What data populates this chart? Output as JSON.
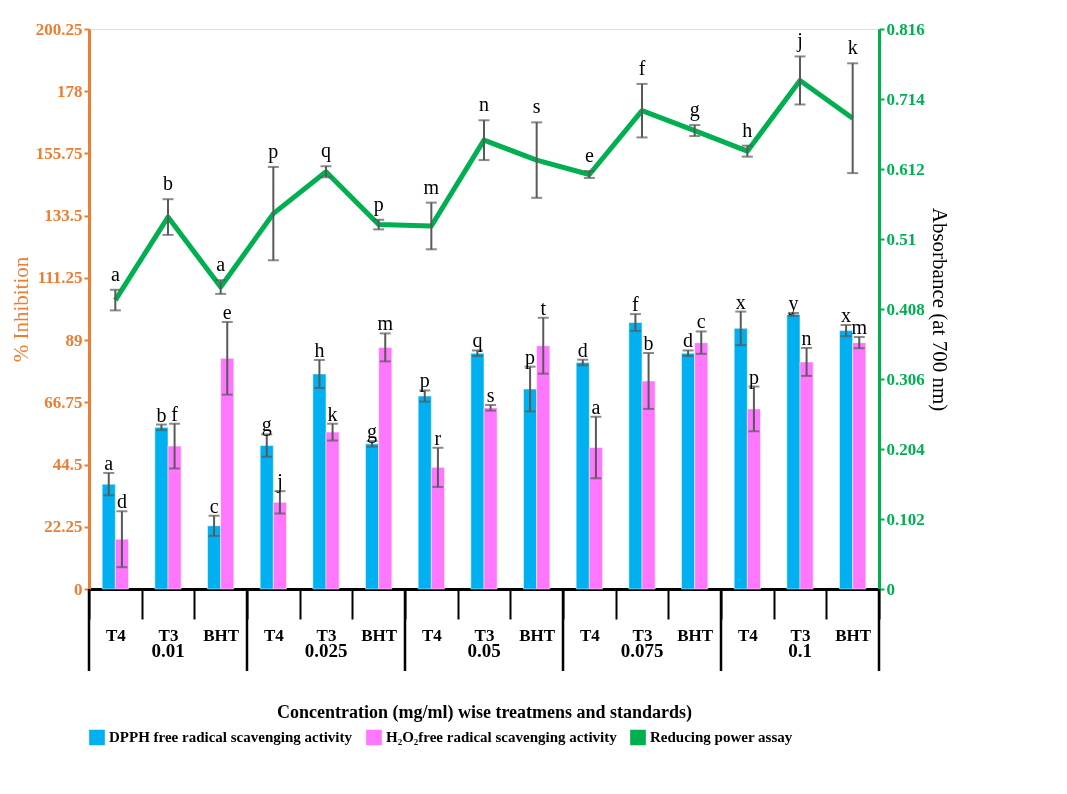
{
  "chart_data": {
    "type": "bar",
    "xlabel": "Concentration (mg/ml) wise treatmens  and standards)",
    "ylabel": "% Inhibition",
    "y2label": "Absorbance (at 700 nm)",
    "categories": [
      "T4",
      "T3",
      "BHT",
      "T4",
      "T3",
      "BHT",
      "T4",
      "T3",
      "BHT",
      "T4",
      "T3",
      "BHT",
      "T4",
      "T3",
      "BHT"
    ],
    "annotations": [
      "0.01",
      "0.025",
      "0.05",
      "0.075",
      "0.1"
    ],
    "series": [
      {
        "name": "DPPH free radical scavenging activity",
        "color": "#00b0f0",
        "values": [
          37.5,
          57.8,
          22.6,
          51.3,
          76.9,
          51.9,
          69,
          84.3,
          71.5,
          81,
          95.3,
          84.3,
          93.2,
          98.2,
          92.4
        ],
        "errors": [
          4,
          1,
          3.6,
          4,
          5,
          1,
          2,
          1,
          8,
          1,
          3,
          1,
          6,
          0.5,
          2
        ],
        "value_labels": [
          "a",
          "b",
          "c",
          "g",
          "h",
          "g",
          "p",
          "q",
          "p",
          "d",
          "f",
          "d",
          "x",
          "y",
          "x"
        ]
      },
      {
        "name": "H₂O₂free radical scavenging activity",
        "color": "#ff77ff",
        "values": [
          17.8,
          51.1,
          82.5,
          31,
          56.1,
          86.4,
          43.5,
          64.8,
          87,
          50.6,
          74.4,
          88.1,
          64.4,
          81.2,
          88.1
        ],
        "errors": [
          10,
          8,
          13,
          4,
          3,
          5,
          7,
          1,
          10,
          11,
          10,
          4,
          8,
          5,
          2
        ],
        "value_labels": [
          "d",
          "f",
          "e",
          "j",
          "k",
          "m",
          "r",
          "s",
          "t",
          "a",
          "b",
          "c",
          "p",
          "n",
          "m"
        ]
      },
      {
        "name": "Reducing power assay",
        "type": "line",
        "axis": "y2",
        "color": "#00b050",
        "values": [
          0.421,
          0.542,
          0.44,
          0.547,
          0.608,
          0.531,
          0.529,
          0.654,
          0.625,
          0.604,
          0.697,
          0.668,
          0.638,
          0.741,
          0.686
        ],
        "errors": [
          0.015,
          0.026,
          0.01,
          0.068,
          0.008,
          0.007,
          0.034,
          0.029,
          0.055,
          0.005,
          0.039,
          0.008,
          0.008,
          0.035,
          0.08
        ],
        "value_labels": [
          "a",
          "b",
          "a",
          "p",
          "q",
          "p",
          "m",
          "n",
          "s",
          "e",
          "f",
          "g",
          "h",
          "j",
          "k"
        ]
      }
    ],
    "ylim": [
      0,
      200.25
    ],
    "yticks": [
      0,
      22.25,
      44.5,
      66.75,
      89,
      111.25,
      133.5,
      155.75,
      178,
      200.25
    ],
    "y2lim": [
      0,
      0.816
    ],
    "y2ticks": [
      0,
      0.102,
      0.204,
      0.306,
      0.408,
      0.51,
      0.612,
      0.714,
      0.816
    ],
    "legend": "bottom",
    "grid": false,
    "marker": "none",
    "line_style": "solid"
  }
}
